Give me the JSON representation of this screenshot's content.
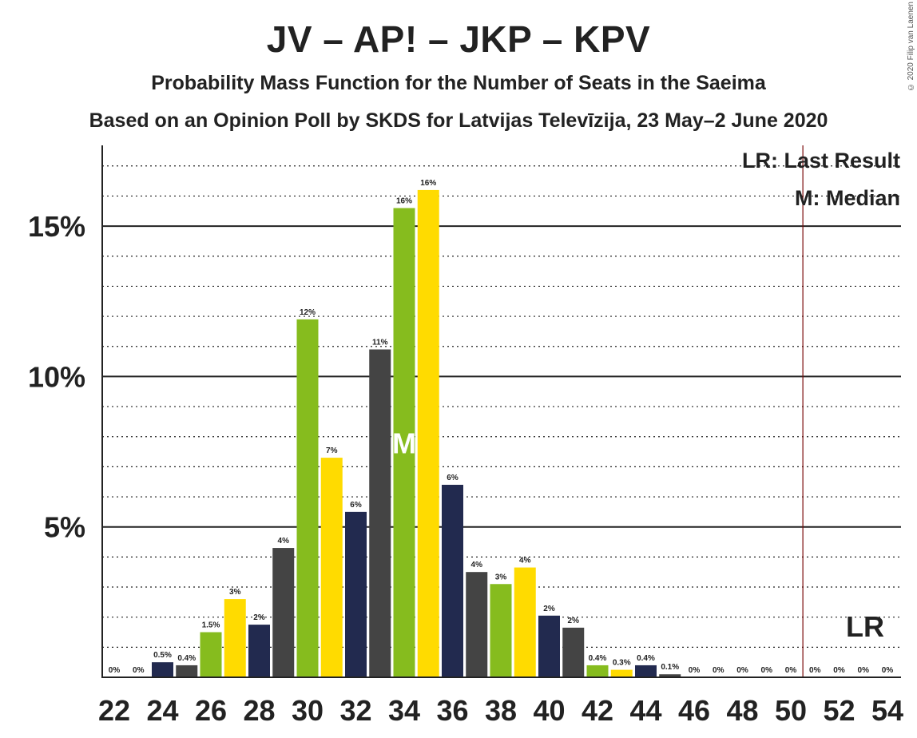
{
  "chart_data": {
    "type": "bar",
    "title": "JV – AP! – JKP – KPV",
    "subtitle": "Probability Mass Function for the Number of Seats in the Saeima",
    "subtitle2": "Based on an Opinion Poll by SKDS for Latvijas Televīzija, 23 May–2 June 2020",
    "copyright": "© 2020 Filip van Laenen",
    "x": [
      22,
      23,
      24,
      25,
      26,
      27,
      28,
      29,
      30,
      31,
      32,
      33,
      34,
      35,
      36,
      37,
      38,
      39,
      40,
      41,
      42,
      43,
      44,
      45,
      46,
      47,
      48,
      49,
      50,
      51,
      52,
      53,
      54
    ],
    "values": [
      0,
      0,
      0.5,
      0.4,
      1.5,
      2.6,
      1.75,
      4.3,
      11.9,
      7.3,
      5.5,
      10.9,
      15.6,
      16.2,
      6.4,
      3.5,
      3.1,
      3.65,
      2.05,
      1.65,
      0.4,
      0.25,
      0.4,
      0.1,
      0,
      0,
      0,
      0,
      0,
      0,
      0,
      0,
      0
    ],
    "labels": [
      "0%",
      "0%",
      "0.5%",
      "0.4%",
      "1.5%",
      "3%",
      "2%",
      "4%",
      "12%",
      "7%",
      "6%",
      "11%",
      "16%",
      "16%",
      "6%",
      "4%",
      "3%",
      "4%",
      "2%",
      "2%",
      "0.4%",
      "0.3%",
      "0.4%",
      "0.1%",
      "0%",
      "0%",
      "0%",
      "0%",
      "0%",
      "0%",
      "0%",
      "0%",
      "0%"
    ],
    "x_tick_labels": [
      "22",
      "24",
      "26",
      "28",
      "30",
      "32",
      "34",
      "36",
      "38",
      "40",
      "42",
      "44",
      "46",
      "48",
      "50",
      "52",
      "54"
    ],
    "y_tick_labels": [
      "5%",
      "10%",
      "15%"
    ],
    "ylim": [
      0,
      17.5
    ],
    "colors": [
      "#222A4F",
      "#444444",
      "#86BC1E",
      "#FFDB00"
    ],
    "median": 34,
    "median_label": "M",
    "last_result": 51,
    "last_result_label": "LR",
    "legend": [
      "LR: Last Result",
      "M: Median"
    ],
    "grid": "dotted every 1%, solid every 5%"
  }
}
